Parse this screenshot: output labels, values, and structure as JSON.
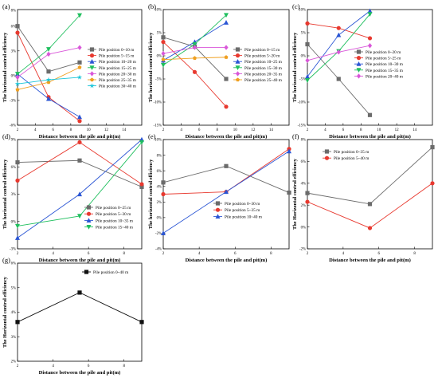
{
  "colors": {
    "gray": "#6b6b6b",
    "red": "#e8392f",
    "blue": "#2a55d4",
    "green": "#1fbf5e",
    "magenta": "#d957d9",
    "orange": "#f0a020",
    "cyan": "#18c4d8",
    "teal": "#1b9bb8",
    "black": "#111111"
  },
  "chart_data": [
    {
      "panel": "(a)",
      "type": "line",
      "xlabel": "Distance between the pile and pit(m)",
      "ylabel": "The horizontal control efficiency",
      "xlim": [
        2,
        16
      ],
      "ylim": [
        -0.06,
        0.08
      ],
      "xticks": [
        2,
        4,
        6,
        8,
        10,
        12,
        14
      ],
      "yticks": [
        -0.06,
        -0.03,
        0,
        0.03,
        0.06
      ],
      "ytick_labels": [
        "-6%",
        "-3%",
        "0%",
        "3%",
        "6%"
      ],
      "y_edge_label": "8%",
      "legend_position": "right",
      "series": [
        {
          "name": "Pile position 0~10 m",
          "color": "gray",
          "marker": "square",
          "x": [
            2,
            5.5,
            9
          ],
          "y": [
            0.06,
            0.005,
            0.016
          ]
        },
        {
          "name": "Pile position 5~15 m",
          "color": "red",
          "marker": "circle",
          "x": [
            2,
            5.5,
            9
          ],
          "y": [
            0.052,
            -0.026,
            -0.055
          ]
        },
        {
          "name": "Pile position 10~20 m",
          "color": "blue",
          "marker": "triangle",
          "x": [
            2,
            5.5,
            9
          ],
          "y": [
            0.002,
            -0.028,
            -0.05
          ]
        },
        {
          "name": "Pile position 15~25 m",
          "color": "green",
          "marker": "triangle-down",
          "x": [
            2,
            5.5,
            9
          ],
          "y": [
            0.002,
            0.032,
            0.073
          ]
        },
        {
          "name": "Pile position 20~30 m",
          "color": "magenta",
          "marker": "diamond",
          "x": [
            2,
            5.5,
            9
          ],
          "y": [
            -0.002,
            0.026,
            0.034
          ]
        },
        {
          "name": "Pile position 25~35 m",
          "color": "orange",
          "marker": "pentagon",
          "x": [
            2,
            5.5,
            9
          ],
          "y": [
            -0.017,
            -0.008,
            0.01
          ]
        },
        {
          "name": "Pile position 30~40 m",
          "color": "cyan",
          "marker": "star",
          "x": [
            2,
            5.5,
            9
          ],
          "y": [
            -0.01,
            -0.005,
            -0.002
          ]
        }
      ]
    },
    {
      "panel": "(b)",
      "type": "line",
      "xlabel": "Distance between the pile and pit(m)",
      "ylabel": "The horizontal control efficiency",
      "xlim": [
        2,
        16
      ],
      "ylim": [
        -0.15,
        0.1
      ],
      "xticks": [
        2,
        4,
        6,
        8,
        10,
        12,
        14
      ],
      "yticks": [
        -0.15,
        -0.1,
        -0.05,
        0,
        0.05,
        0.1
      ],
      "ytick_labels": [
        "-15%",
        "-10%",
        "-5%",
        "0%",
        "5%",
        "10%"
      ],
      "legend_position": "right",
      "series": [
        {
          "name": "Pile position 0~15 m",
          "color": "gray",
          "marker": "square",
          "x": [
            2,
            5.5,
            9
          ],
          "y": [
            0.04,
            0.02,
            -0.05
          ]
        },
        {
          "name": "Pile position 5~20 m",
          "color": "red",
          "marker": "circle",
          "x": [
            2,
            5.5,
            9
          ],
          "y": [
            0.03,
            -0.035,
            -0.11
          ]
        },
        {
          "name": "Pile position 10~25 m",
          "color": "blue",
          "marker": "triangle",
          "x": [
            2,
            5.5,
            9
          ],
          "y": [
            -0.01,
            0.03,
            0.072
          ]
        },
        {
          "name": "Pile position 15~30 m",
          "color": "green",
          "marker": "triangle-down",
          "x": [
            2,
            5.5,
            9
          ],
          "y": [
            -0.02,
            0.025,
            0.088
          ]
        },
        {
          "name": "Pile position 20~35 m",
          "color": "magenta",
          "marker": "diamond",
          "x": [
            2,
            5.5,
            9
          ],
          "y": [
            0.005,
            0.018,
            0.018
          ]
        },
        {
          "name": "Pile position 25~40 m",
          "color": "orange",
          "marker": "pentagon",
          "x": [
            2,
            5.5,
            9
          ],
          "y": [
            -0.008,
            -0.005,
            -0.003
          ]
        }
      ]
    },
    {
      "panel": "(c)",
      "type": "line",
      "xlabel": "Distance between the pile and pit(m)",
      "ylabel": "The horizontal control efficiency",
      "xlim": [
        2,
        16
      ],
      "ylim": [
        -0.15,
        0.1
      ],
      "xticks": [
        2,
        4,
        6,
        8,
        10,
        12,
        14
      ],
      "xtick_labels": [
        "2",
        "4",
        "6",
        "8",
        "10",
        "12",
        "14"
      ],
      "yticks": [
        -0.15,
        -0.1,
        -0.05,
        0,
        0.05,
        0.1
      ],
      "ytick_labels": [
        "-15%",
        "-10%",
        "-5%",
        "0%",
        "5%",
        "10%"
      ],
      "legend_position": "right",
      "series": [
        {
          "name": "Pile position 0~20 m",
          "color": "gray",
          "marker": "square",
          "x": [
            2,
            5.5,
            9
          ],
          "y": [
            0.025,
            -0.05,
            -0.128
          ]
        },
        {
          "name": "Pile position 5~25 m",
          "color": "red",
          "marker": "circle",
          "x": [
            2,
            5.5,
            9
          ],
          "y": [
            0.07,
            0.06,
            0.038
          ]
        },
        {
          "name": "Pile position 10~30 m",
          "color": "blue",
          "marker": "triangle",
          "x": [
            2,
            5.5,
            9
          ],
          "y": [
            -0.045,
            0.045,
            0.097
          ]
        },
        {
          "name": "Pile position 15~35 m",
          "color": "green",
          "marker": "triangle-down",
          "x": [
            2,
            5.5,
            9
          ],
          "y": [
            -0.053,
            0.01,
            0.09
          ]
        },
        {
          "name": "Pile position 20~40 m",
          "color": "magenta",
          "marker": "diamond",
          "x": [
            2,
            5.5,
            9
          ],
          "y": [
            -0.01,
            0.008,
            0.022
          ]
        }
      ]
    },
    {
      "panel": "(d)",
      "type": "line",
      "xlabel": "Distance between the pile and pit(m)",
      "ylabel": "The horizontal control efficiency",
      "xlim": [
        2,
        9
      ],
      "ylim": [
        -0.03,
        0.09
      ],
      "xticks": [
        2,
        4,
        6,
        8
      ],
      "yticks": [
        -0.03,
        0,
        0.03,
        0.06,
        0.09
      ],
      "ytick_labels": [
        "-3%",
        "0%",
        "3%",
        "6%",
        "9%"
      ],
      "legend_position": "lower-right",
      "series": [
        {
          "name": "Pile position 0~25 m",
          "color": "gray",
          "marker": "square",
          "x": [
            2,
            5.5,
            9
          ],
          "y": [
            0.065,
            0.067,
            0.038
          ]
        },
        {
          "name": "Pile position 5~30 m",
          "color": "red",
          "marker": "circle",
          "x": [
            2,
            5.5,
            9
          ],
          "y": [
            0.045,
            0.087,
            0.041
          ]
        },
        {
          "name": "Pile position 10~35 m",
          "color": "blue",
          "marker": "triangle",
          "x": [
            2,
            5.5,
            9
          ],
          "y": [
            -0.018,
            0.03,
            0.09
          ]
        },
        {
          "name": "Pile position 15~40 m",
          "color": "green",
          "marker": "triangle-down",
          "x": [
            2,
            5.5,
            9
          ],
          "y": [
            -0.005,
            0.006,
            0.087
          ]
        }
      ]
    },
    {
      "panel": "(e)",
      "type": "line",
      "xlabel": "Distance between the pile and pit(m)",
      "ylabel": "The horizontal control efficiency",
      "xlim": [
        2,
        9
      ],
      "ylim": [
        -0.04,
        0.1
      ],
      "xticks": [
        2,
        4,
        6,
        8
      ],
      "yticks": [
        -0.04,
        -0.02,
        0,
        0.02,
        0.04,
        0.06,
        0.08,
        0.1
      ],
      "ytick_labels": [
        "-4%",
        "-2%",
        "0%",
        "2%",
        "4%",
        "6%",
        "8%",
        "10%"
      ],
      "legend_position": "center-right",
      "series": [
        {
          "name": "Pile position 0~30 m",
          "color": "gray",
          "marker": "square",
          "x": [
            2,
            5.5,
            9
          ],
          "y": [
            0.045,
            0.066,
            0.032
          ]
        },
        {
          "name": "Pile position 5~35 m",
          "color": "red",
          "marker": "circle",
          "x": [
            2,
            5.5,
            9
          ],
          "y": [
            0.03,
            0.033,
            0.088
          ]
        },
        {
          "name": "Pile position 10~40 m",
          "color": "blue",
          "marker": "triangle",
          "x": [
            2,
            5.5,
            9
          ],
          "y": [
            -0.02,
            0.033,
            0.085
          ]
        }
      ]
    },
    {
      "panel": "(f)",
      "type": "line",
      "xlabel": "Distance between the pile and pit(m)",
      "ylabel": "The Horizontal control efficiency",
      "xlim": [
        2,
        9
      ],
      "ylim": [
        -0.02,
        0.08
      ],
      "xticks": [
        2,
        4,
        6,
        8
      ],
      "yticks": [
        -0.02,
        0,
        0.02,
        0.04,
        0.06,
        0.08
      ],
      "ytick_labels": [
        "-2%",
        "0%",
        "2%",
        "4%",
        "6%",
        "8%"
      ],
      "legend_position": "top-left",
      "series": [
        {
          "name": "Pile position 0~35 m",
          "color": "gray",
          "marker": "square",
          "x": [
            2,
            5.5,
            9
          ],
          "y": [
            0.031,
            0.021,
            0.073
          ]
        },
        {
          "name": "Pile position 5~40 m",
          "color": "red",
          "marker": "circle",
          "x": [
            2,
            5.5,
            9
          ],
          "y": [
            0.023,
            -0.001,
            0.04
          ]
        }
      ]
    },
    {
      "panel": "(g)",
      "type": "line",
      "xlabel": "Distance between the pile and pit(m)",
      "ylabel": "The Horizontal control efficiency",
      "xlim": [
        2,
        9
      ],
      "ylim": [
        0.02,
        0.06
      ],
      "xticks": [
        2,
        4,
        6,
        8
      ],
      "yticks": [
        0.02,
        0.03,
        0.04,
        0.05,
        0.06
      ],
      "ytick_labels": [
        "2%",
        "3%",
        "4%",
        "5%",
        "6%"
      ],
      "legend_position": "top-right",
      "series": [
        {
          "name": "Pile position 0~40 m",
          "color": "black",
          "marker": "square",
          "x": [
            2,
            5.5,
            9
          ],
          "y": [
            0.036,
            0.048,
            0.036
          ]
        }
      ]
    }
  ]
}
